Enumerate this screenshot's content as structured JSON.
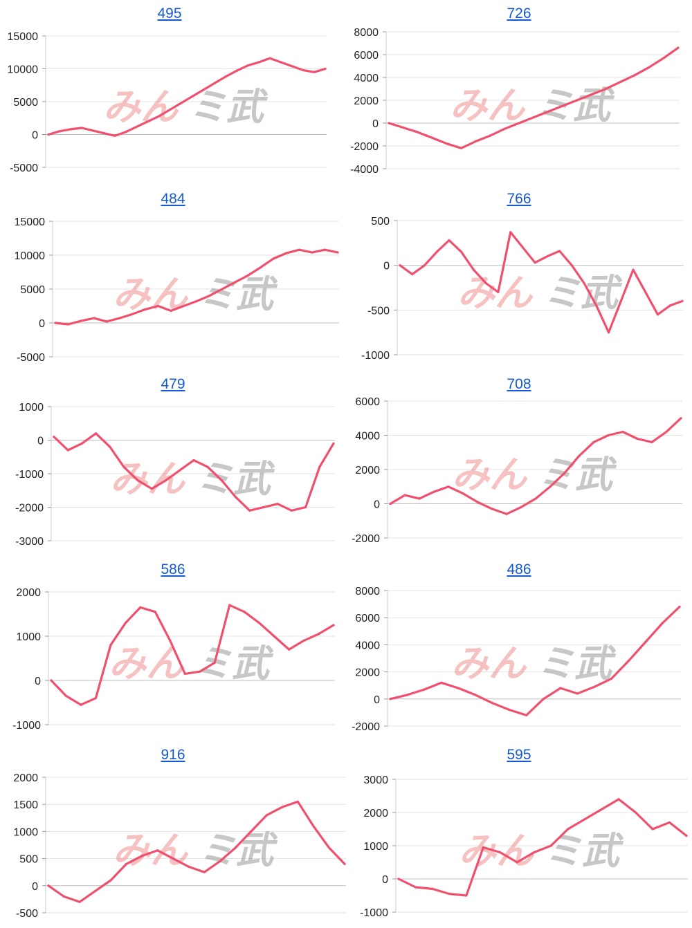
{
  "colors": {
    "series": "#f0506e",
    "link": "#1558d6",
    "grid": "#e3e3e3",
    "axis": "#cccccc",
    "watermark_left": "#ef8f8f",
    "watermark_right": "#9a9a9a"
  },
  "watermark": {
    "left": "みん",
    "right": "ミ武"
  },
  "chart_data": [
    {
      "type": "line",
      "title": "495",
      "grid": true,
      "legend": "none",
      "yticks": [
        15000,
        10000,
        5000,
        0,
        -5000
      ],
      "ylim": [
        -5000,
        15000
      ],
      "series": [
        {
          "values": [
            0,
            500,
            800,
            1000,
            600,
            200,
            -200,
            400,
            1200,
            2000,
            2800,
            3800,
            4800,
            5800,
            6800,
            7800,
            8800,
            9700,
            10500,
            11000,
            11600,
            11000,
            10400,
            9800,
            9500,
            10000
          ]
        }
      ]
    },
    {
      "type": "line",
      "title": "726",
      "grid": true,
      "legend": "none",
      "yticks": [
        8000,
        6000,
        4000,
        2000,
        0,
        -2000,
        -4000
      ],
      "ylim": [
        -4000,
        8000
      ],
      "series": [
        {
          "values": [
            0,
            -400,
            -800,
            -1300,
            -1800,
            -2200,
            -1600,
            -1100,
            -500,
            0,
            500,
            1000,
            1500,
            2000,
            2500,
            3000,
            3600,
            4200,
            4900,
            5700,
            6600
          ]
        }
      ]
    },
    {
      "type": "line",
      "title": "484",
      "grid": true,
      "legend": "none",
      "yticks": [
        15000,
        10000,
        5000,
        0,
        -5000
      ],
      "ylim": [
        -5000,
        15000
      ],
      "series": [
        {
          "values": [
            0,
            -200,
            300,
            700,
            200,
            700,
            1300,
            2000,
            2500,
            1800,
            2500,
            3200,
            4000,
            5000,
            6000,
            7000,
            8200,
            9500,
            10300,
            10800,
            10400,
            10800,
            10400
          ]
        }
      ]
    },
    {
      "type": "line",
      "title": "766",
      "grid": true,
      "legend": "none",
      "yticks": [
        500,
        0,
        -500,
        -1000
      ],
      "ylim": [
        -1000,
        500
      ],
      "series": [
        {
          "values": [
            0,
            -100,
            0,
            150,
            280,
            150,
            -50,
            -200,
            -300,
            370,
            200,
            30,
            100,
            160,
            0,
            -200,
            -450,
            -750,
            -400,
            -50,
            -300,
            -550,
            -450,
            -400
          ]
        }
      ]
    },
    {
      "type": "line",
      "title": "479",
      "grid": true,
      "legend": "none",
      "yticks": [
        1000,
        0,
        -1000,
        -2000,
        -3000
      ],
      "ylim": [
        -3000,
        1000
      ],
      "series": [
        {
          "values": [
            100,
            -300,
            -100,
            200,
            -200,
            -800,
            -1200,
            -1450,
            -1200,
            -900,
            -600,
            -800,
            -1200,
            -1700,
            -2100,
            -2000,
            -1900,
            -2100,
            -2000,
            -800,
            -100
          ]
        }
      ]
    },
    {
      "type": "line",
      "title": "708",
      "grid": true,
      "legend": "none",
      "yticks": [
        6000,
        4000,
        2000,
        0,
        -2000
      ],
      "ylim": [
        -2000,
        6000
      ],
      "series": [
        {
          "values": [
            0,
            500,
            300,
            700,
            1000,
            600,
            100,
            -300,
            -600,
            -200,
            300,
            1000,
            1800,
            2800,
            3600,
            4000,
            4200,
            3800,
            3600,
            4200,
            5000
          ]
        }
      ]
    },
    {
      "type": "line",
      "title": "586",
      "grid": true,
      "legend": "none",
      "yticks": [
        2000,
        1000,
        0,
        -1000
      ],
      "ylim": [
        -1000,
        2000
      ],
      "series": [
        {
          "values": [
            0,
            -350,
            -550,
            -400,
            800,
            1300,
            1650,
            1550,
            900,
            150,
            200,
            400,
            1700,
            1550,
            1300,
            1000,
            700,
            900,
            1050,
            1250
          ]
        }
      ]
    },
    {
      "type": "line",
      "title": "486",
      "grid": true,
      "legend": "none",
      "yticks": [
        8000,
        6000,
        4000,
        2000,
        0,
        -2000
      ],
      "ylim": [
        -2000,
        8000
      ],
      "series": [
        {
          "values": [
            0,
            300,
            700,
            1200,
            800,
            300,
            -300,
            -800,
            -1200,
            0,
            800,
            400,
            900,
            1500,
            2800,
            4200,
            5600,
            6800
          ]
        }
      ]
    },
    {
      "type": "line",
      "title": "916",
      "grid": true,
      "legend": "none",
      "yticks": [
        2000,
        1500,
        1000,
        500,
        0,
        -500
      ],
      "ylim": [
        -500,
        2000
      ],
      "series": [
        {
          "values": [
            0,
            -200,
            -300,
            -100,
            100,
            400,
            550,
            650,
            500,
            350,
            250,
            450,
            700,
            1000,
            1300,
            1450,
            1550,
            1100,
            700,
            400
          ]
        }
      ]
    },
    {
      "type": "line",
      "title": "595",
      "grid": true,
      "legend": "none",
      "yticks": [
        3000,
        2000,
        1000,
        0,
        -1000
      ],
      "ylim": [
        -1000,
        3000
      ],
      "series": [
        {
          "values": [
            0,
            -250,
            -300,
            -450,
            -500,
            950,
            800,
            500,
            800,
            1000,
            1500,
            1800,
            2100,
            2400,
            2000,
            1500,
            1700,
            1300
          ]
        }
      ]
    }
  ]
}
